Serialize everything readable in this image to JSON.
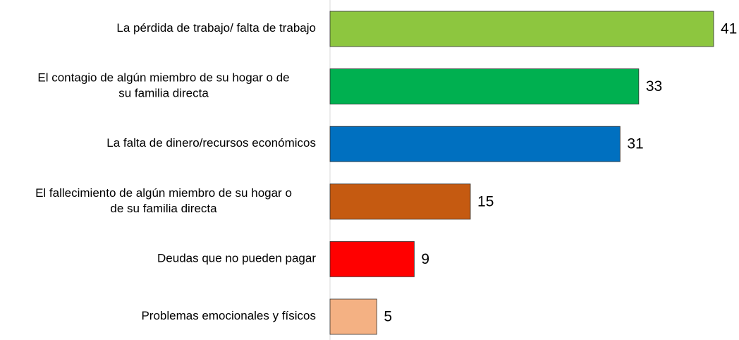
{
  "chart_data": {
    "type": "bar",
    "orientation": "horizontal",
    "categories": [
      "La pérdida de trabajo/ falta de trabajo",
      "El contagio de algún miembro de su hogar o de\nsu familia directa",
      "La falta de dinero/recursos económicos",
      "El fallecimiento de algún miembro de su hogar o\nde su familia directa",
      "Deudas que no pueden pagar",
      "Problemas emocionales y físicos"
    ],
    "values": [
      41,
      33,
      31,
      15,
      9,
      5
    ],
    "colors": [
      "#8dc63f",
      "#00b050",
      "#0070c0",
      "#c55a11",
      "#ff0000",
      "#f4b183"
    ]
  }
}
